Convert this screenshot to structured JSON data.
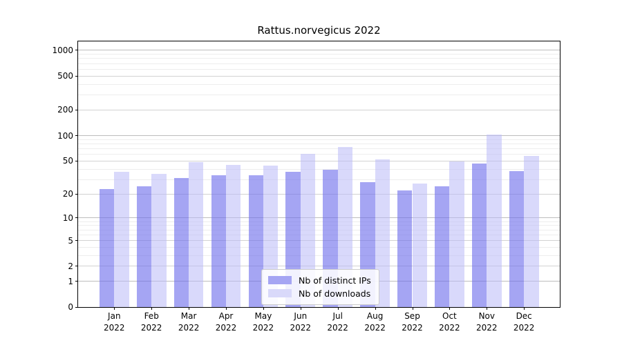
{
  "title": "Rattus.norvegicus 2022",
  "chart_data": {
    "type": "bar",
    "title": "Rattus.norvegicus 2022",
    "scale": "log(1+x)",
    "categories": [
      "Jan",
      "Feb",
      "Mar",
      "Apr",
      "May",
      "Jun",
      "Jul",
      "Aug",
      "Sep",
      "Oct",
      "Nov",
      "Dec"
    ],
    "year": "2022",
    "series": [
      {
        "name": "Nb of distinct IPs",
        "color": "#a5a5f3",
        "fill": "rgba(110,110,235,0.62)",
        "values": [
          23,
          25,
          31,
          34,
          34,
          37,
          39,
          28,
          22,
          25,
          47,
          38
        ]
      },
      {
        "name": "Nb of downloads",
        "color": "#d9d9fa",
        "fill": "rgba(185,185,248,0.55)",
        "values": [
          37,
          35,
          48,
          45,
          44,
          61,
          74,
          52,
          27,
          49,
          103,
          57
        ]
      }
    ],
    "yticks": [
      0,
      1,
      2,
      5,
      10,
      20,
      50,
      100,
      200,
      500,
      1000
    ],
    "minor_yticks": [
      3,
      4,
      6,
      7,
      8,
      9,
      30,
      40,
      60,
      70,
      80,
      90,
      300,
      400,
      600,
      700,
      800,
      900
    ],
    "decade_yticks": [
      1,
      10,
      100,
      1000
    ],
    "ylim": [
      0,
      1270
    ],
    "xlabel": "",
    "ylabel": "",
    "grid": true,
    "legend_position": "bottom-center"
  }
}
